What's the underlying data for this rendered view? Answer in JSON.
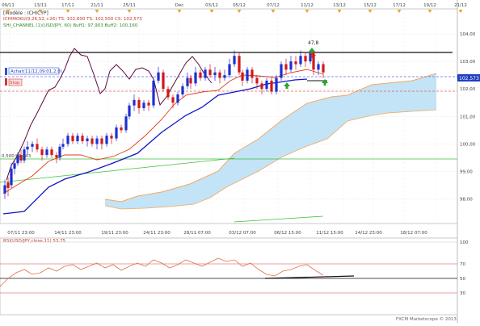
{
  "colors": {
    "up": "#1e2fd0",
    "down": "#d21818",
    "ichimoku_cloud": "#bfe3f6",
    "cloud_edge": "#f4a860",
    "tenkan": "#e23a1a",
    "kijun": "#0f17c8",
    "chikou": "#5a0a46",
    "channel": "#2fb62f",
    "rsi_line": "#e0704a"
  },
  "header": {
    "line1": "[Modèle : ICHICYP]",
    "line2": "ICHIMOKU(9,26,52,+26) TS: 102,600 TS: 102,500 CS: 102,573",
    "line3": "SHI_CHANNEL (1)(USD/JPY, 60)  Buff1: 97,903  Buff2: 100,160"
  },
  "top_dates": [
    "09/11",
    "13/11",
    "17/11",
    "21/11",
    "25/11",
    "Dec",
    "03/12",
    "05/12",
    "07/12",
    "11/12",
    "13/12",
    "15/12",
    "17/12",
    "19/12",
    "21/12"
  ],
  "price_labels": [
    "104,00",
    "103,00",
    "102,00",
    "101,00",
    "100,00",
    "99,00",
    "98,00"
  ],
  "current_price": "102,573",
  "tags": {
    "achat": "Achat(11/12,09:01,2,0)",
    "stop": "Stop",
    "level": "99,843",
    "level_prefix": "0,500",
    "peak": "47,8"
  },
  "bottom_dates": [
    "07/11 23:00",
    "14/11 23:00",
    "19/11 23:00",
    "24/11 23:00",
    "28/11 07:00",
    "03/12 07:00",
    "06/12 15:00",
    "11/12 15:00",
    "14/12 23:00",
    "18/12 07:00"
  ],
  "rsi": {
    "label": "RSI(USD/JPY,close,11)  53,75",
    "levels": [
      "100",
      "70",
      "50",
      "30"
    ]
  },
  "footer": "FXCM Marketscope © 2013"
}
